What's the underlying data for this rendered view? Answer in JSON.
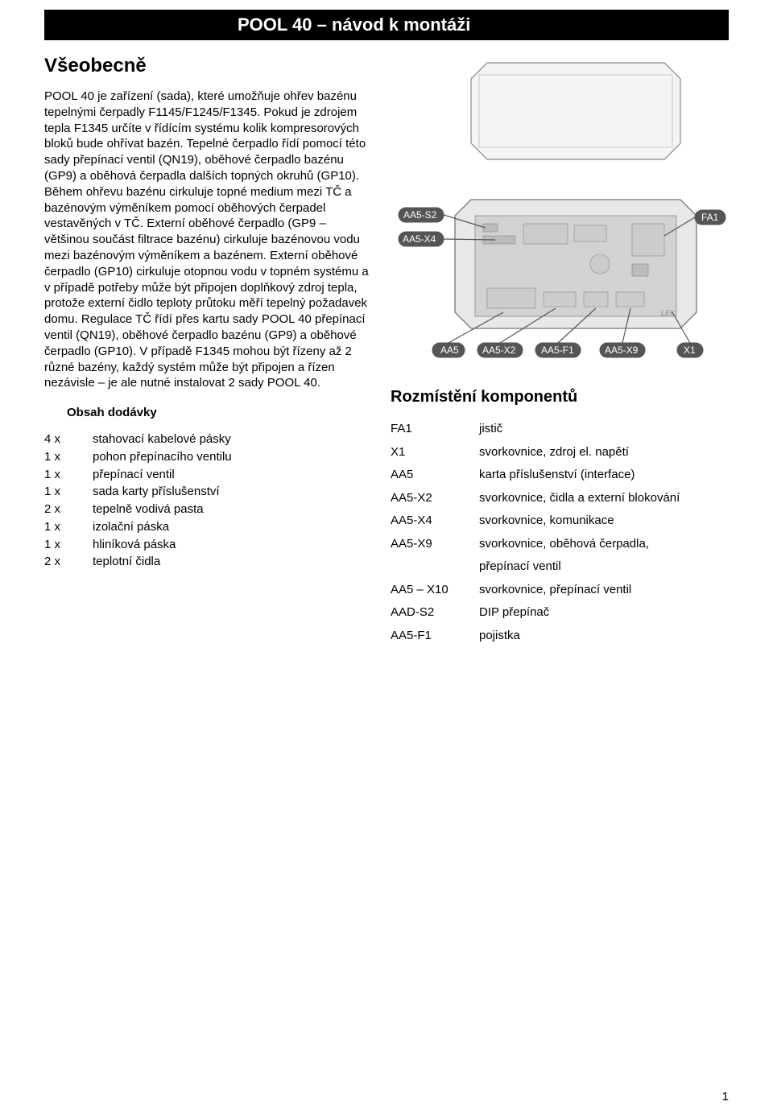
{
  "title_bar": "POOL 40 – návod k montáži",
  "heading_general": "Všeobecně",
  "body_paragraph": "POOL 40 je zařízení (sada), které umožňuje ohřev bazénu tepelnými čerpadly F1145/F1245/F1345. Pokud je zdrojem tepla F1345 určíte v řídícím systému kolik kompresorových bloků bude ohřívat bazén. Tepelné čerpadlo řídí pomocí této sady přepínací ventil (QN19), oběhové čerpadlo bazénu (GP9) a oběhová čerpadla dalších topných okruhů (GP10). Během ohřevu bazénu cirkuluje topné medium mezi TČ a bazénovým výměníkem pomocí oběhových čerpadel vestavěných v TČ. Externí oběhové čerpadlo (GP9 – většinou součást filtrace bazénu) cirkuluje bazénovou vodu mezi bazénovým výměníkem a bazénem. Externí oběhové čerpadlo (GP10) cirkuluje otopnou vodu v topném systému a v případě potřeby může být připojen doplňkový zdroj tepla, protože externí čidlo teploty průtoku měří tepelný požadavek domu. Regulace TČ řídí přes kartu sady POOL 40 přepínací ventil (QN19), oběhové čerpadlo bazénu (GP9) a oběhové čerpadlo (GP10). V případě F1345 mohou být řízeny až 2 různé bazény, každý systém může být připojen a řízen nezávisle – je ale nutné instalovat 2 sady POOL 40.",
  "heading_supply": "Obsah dodávky",
  "supply_items": [
    {
      "qty": "4 x",
      "desc": "stahovací kabelové pásky"
    },
    {
      "qty": "1 x",
      "desc": "pohon přepínacího ventilu"
    },
    {
      "qty": "1 x",
      "desc": "přepínací ventil"
    },
    {
      "qty": "1 x",
      "desc": "sada karty příslušenství"
    },
    {
      "qty": "2 x",
      "desc": "tepelně vodivá pasta"
    },
    {
      "qty": "1 x",
      "desc": "izolační páska"
    },
    {
      "qty": "1 x",
      "desc": "hliníková páska"
    },
    {
      "qty": "2 x",
      "desc": "teplotní čidla"
    }
  ],
  "heading_components": "Rozmístění komponentů",
  "components": [
    {
      "code": "FA1",
      "desc": "jistič"
    },
    {
      "code": "X1",
      "desc": "svorkovnice, zdroj el. napětí"
    },
    {
      "code": "AA5",
      "desc": "karta příslušenství (interface)"
    },
    {
      "code": "AA5-X2",
      "desc": "svorkovnice, čidla a externí blokování"
    },
    {
      "code": "AA5-X4",
      "desc": "svorkovnice, komunikace"
    },
    {
      "code": "AA5-X9",
      "desc": "svorkovnice, oběhová čerpadla,"
    },
    {
      "code": "",
      "desc": "přepínací ventil",
      "indent": true
    },
    {
      "code": "AA5 – X10",
      "desc": "svorkovnice, přepínací ventil"
    },
    {
      "code": "AAD-S2",
      "desc": "DIP přepínač"
    },
    {
      "code": "AA5-F1",
      "desc": "pojistka"
    }
  ],
  "diagram_labels": {
    "aa5_s2": "AA5-S2",
    "aa5_x4": "AA5-X4",
    "fa1": "FA1",
    "aa5": "AA5",
    "aa5_x2": "AA5-X2",
    "aa5_f1": "AA5-F1",
    "aa5_x9": "AA5-X9",
    "x1": "X1",
    "lek": "LEK"
  },
  "page_number": "1",
  "colors": {
    "title_bg": "#000000",
    "title_fg": "#ffffff",
    "text": "#000000",
    "pill_fill": "#555555",
    "diagram_stroke": "#666666",
    "diagram_lid": "#f4f4f4",
    "diagram_base": "#e8e8e8",
    "diagram_pcb": "#d2d2d2"
  }
}
